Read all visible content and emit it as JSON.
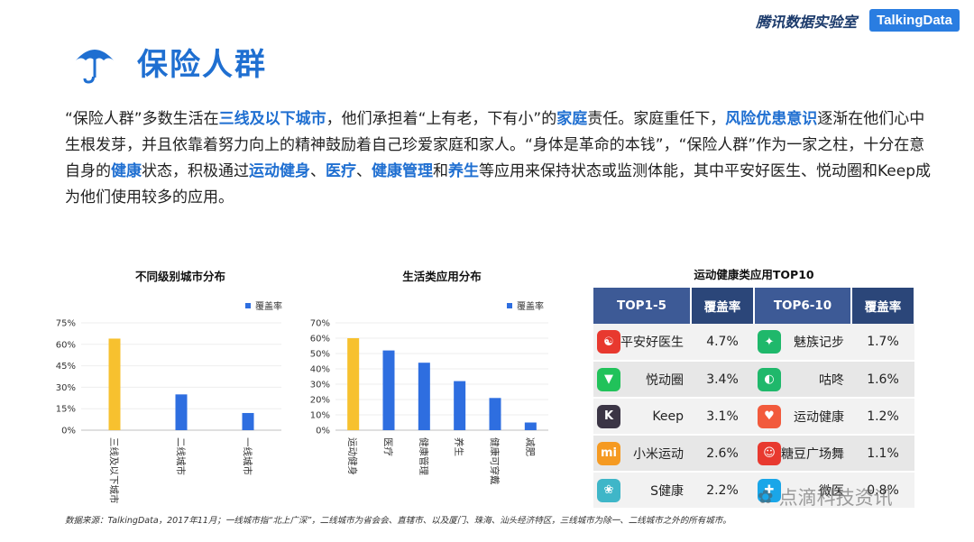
{
  "header": {
    "brand_cn": "腾讯数据实验室",
    "brand_en": "TalkingData"
  },
  "title": "保险人群",
  "intro": [
    {
      "t": "“保险人群”多数生活在",
      "h": false
    },
    {
      "t": "三线及以下城市",
      "h": true
    },
    {
      "t": "，他们承担着“上有老，下有小”的",
      "h": false
    },
    {
      "t": "家庭",
      "h": true
    },
    {
      "t": "责任。家庭重任下，",
      "h": false
    },
    {
      "t": "风险优患意识",
      "h": true
    },
    {
      "t": "逐渐在他们心中生根发芽，并且依靠着努力向上的精神鼓励着自己珍爱家庭和家人。“身体是革命的本钱”，“保险人群”作为一家之柱，十分在意自身的",
      "h": false
    },
    {
      "t": "健康",
      "h": true
    },
    {
      "t": "状态，积极通过",
      "h": false
    },
    {
      "t": "运动健身",
      "h": true
    },
    {
      "t": "、",
      "h": false
    },
    {
      "t": "医疗",
      "h": true
    },
    {
      "t": "、",
      "h": false
    },
    {
      "t": "健康管理",
      "h": true
    },
    {
      "t": "和",
      "h": false
    },
    {
      "t": "养生",
      "h": true
    },
    {
      "t": "等应用来保持状态或监测体能，其中平安好医生、悦动圈和Keep成为他们使用较多的应用。",
      "h": false
    }
  ],
  "chart_data": [
    {
      "type": "bar",
      "title": "不同级别城市分布",
      "legend": "覆盖率",
      "legend_position": "top-right",
      "categories": [
        "三线及以下城市",
        "二线城市",
        "一线城市"
      ],
      "values": [
        64,
        25,
        12
      ],
      "yticks": [
        "0%",
        "15%",
        "30%",
        "45%",
        "60%",
        "75%"
      ],
      "ylim": [
        0,
        75
      ],
      "highlight_index": 0,
      "colors": {
        "highlight": "#f7c12f",
        "normal": "#2e6ee0"
      }
    },
    {
      "type": "bar",
      "title": "生活类应用分布",
      "legend": "覆盖率",
      "legend_position": "top-right",
      "categories": [
        "运动健身",
        "医疗",
        "健康管理",
        "养生",
        "健康可穿戴",
        "减肥"
      ],
      "values": [
        60,
        52,
        44,
        32,
        21,
        5
      ],
      "yticks": [
        "0%",
        "10%",
        "20%",
        "30%",
        "40%",
        "50%",
        "60%",
        "70%"
      ],
      "ylim": [
        0,
        70
      ],
      "highlight_index": 0,
      "colors": {
        "highlight": "#f7c12f",
        "normal": "#2e6ee0"
      }
    },
    {
      "type": "table",
      "title": "运动健康类应用TOP10",
      "headers": [
        "TOP1-5",
        "覆盖率",
        "TOP6-10",
        "覆盖率"
      ],
      "rows": [
        {
          "app1": "平安好医生",
          "icon1": "pingan-icon",
          "c1": "#e8392f",
          "g1": "☯",
          "rate1": "4.7%",
          "app2": "魅族记步",
          "icon2": "meizu-walk-icon",
          "c2": "#1fb86b",
          "g2": "✦",
          "rate2": "1.7%"
        },
        {
          "app1": "悦动圈",
          "icon1": "yuedong-icon",
          "c1": "#21c25a",
          "g1": "▼",
          "rate1": "3.4%",
          "app2": "咕咚",
          "icon2": "codoon-icon",
          "c2": "#1fb86b",
          "g2": "◐",
          "rate2": "1.6%"
        },
        {
          "app1": "Keep",
          "icon1": "keep-icon",
          "c1": "#3b3545",
          "g1": "K",
          "rate1": "3.1%",
          "app2": "运动健康",
          "icon2": "huawei-health-icon",
          "c2": "#f25a3c",
          "g2": "♥",
          "rate2": "1.2%"
        },
        {
          "app1": "小米运动",
          "icon1": "mi-fit-icon",
          "c1": "#f59a22",
          "g1": "mi",
          "rate1": "2.6%",
          "app2": "糖豆广场舞",
          "icon2": "tangdou-icon",
          "c2": "#e8392f",
          "g2": "☺",
          "rate2": "1.1%"
        },
        {
          "app1": "S健康",
          "icon1": "s-health-icon",
          "c1": "#3fb6c8",
          "g1": "❀",
          "rate1": "2.2%",
          "app2": "微医",
          "icon2": "weiyi-icon",
          "c2": "#1aa6e8",
          "g2": "✚",
          "rate2": "0.8%"
        }
      ]
    }
  ],
  "footnote": "数据来源：TalkingData，2017年11月；一线城市指“北上广深”，二线城市为省会会、直辖市、以及厦门、珠海、汕头经济特区，三线城市为除一、二线城市之外的所有城市。",
  "watermark": "点滴科技资讯"
}
